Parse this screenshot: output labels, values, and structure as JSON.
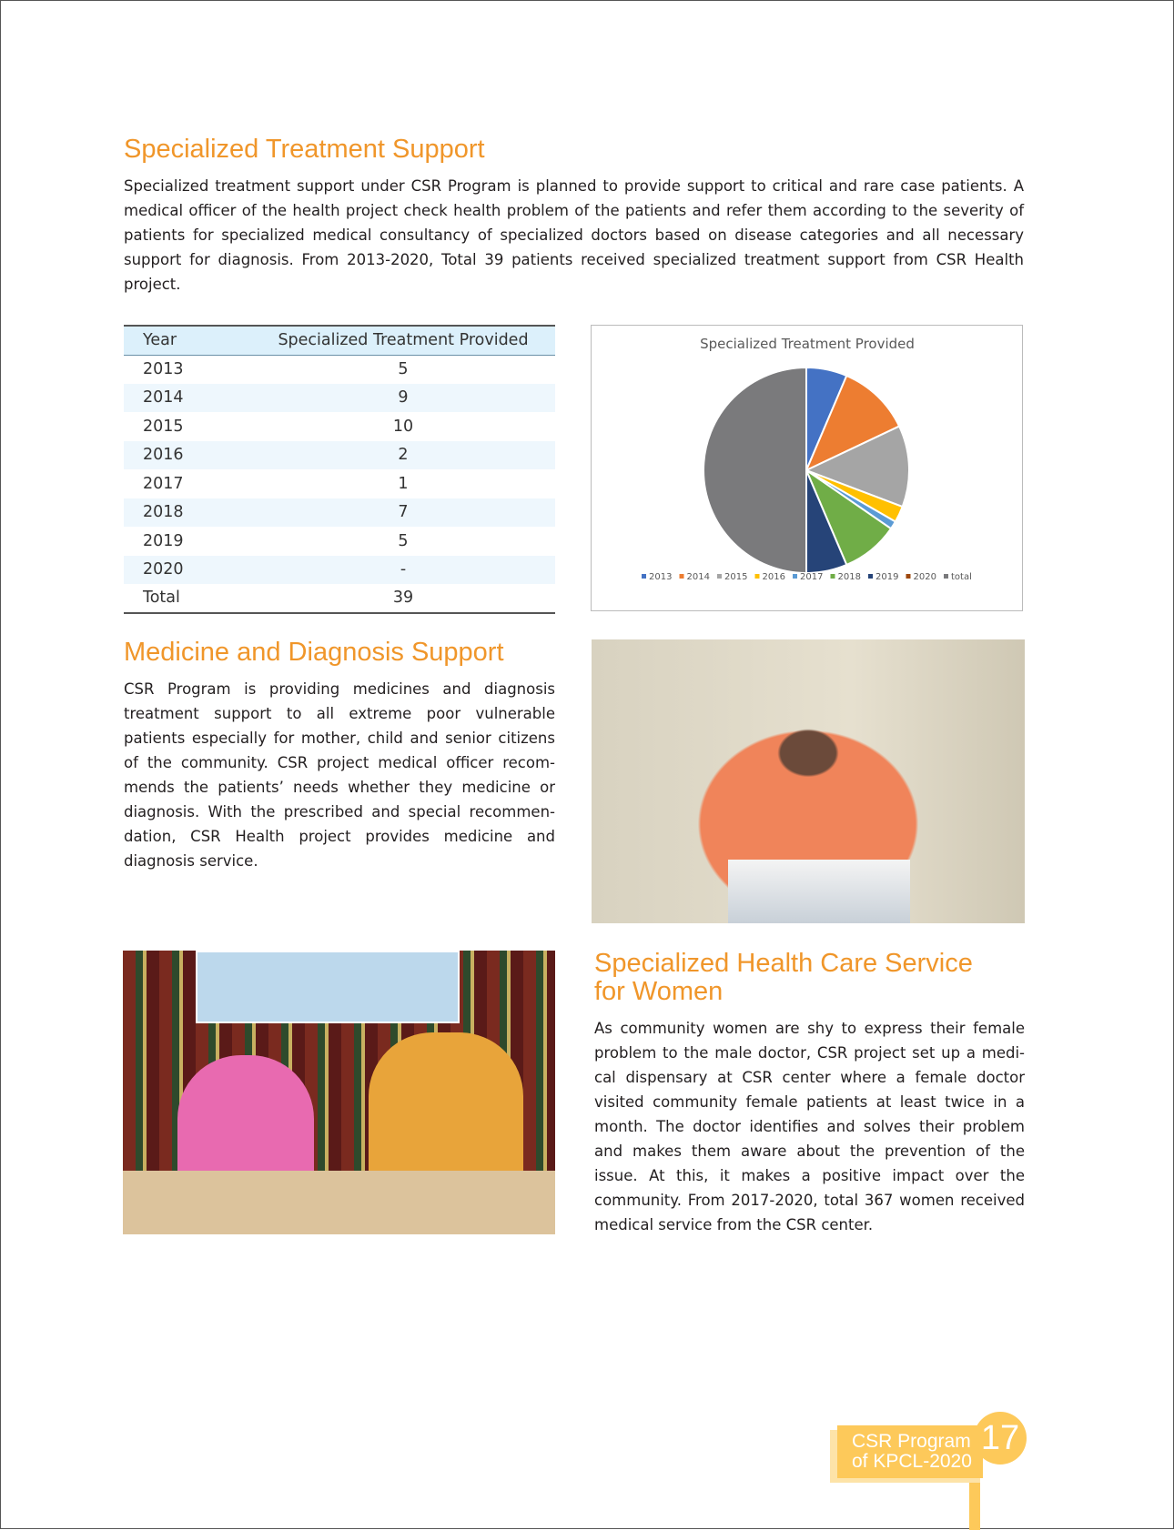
{
  "sections": {
    "specialized": {
      "title": "Specialized Treatment Support",
      "body": "Specialized treatment support under CSR Program is planned to provide support to critical and rare case patients. A medical officer of the health project check health problem of the patients and refer them according to the severity of patients for specialized medical consultancy of specialized doctors based on disease categories and all necessary support for diagnosis. From 2013-2020, Total 39 patients received specialized treatment support from CSR Health project."
    },
    "medicine": {
      "title": "Medicine and Diagnosis Support",
      "body": "CSR Program is providing medicines and diagnosis treatment support to all extreme poor vulnerable patients especially for mother, child and senior citizens of the community. CSR project medical officer recom-mends the patients’ needs whether they medicine or diagnosis. With the prescribed and special recommen-dation, CSR Health project provides medicine and diagnosis service."
    },
    "women": {
      "title_line1": "Specialized Health Care Service",
      "title_line2": "for Women",
      "body": "As community women are shy to express their female problem to the male doctor, CSR project set up a medi-cal dispensary at CSR center where a female doctor visited community female patients at least twice in a month. The doctor identifies and solves their problem and makes them aware about the prevention of the issue. At this, it makes a positive impact over the community. From 2017-2020, total 367 women received medical service from the CSR center."
    }
  },
  "table": {
    "headers": [
      "Year",
      "Specialized Treatment Provided"
    ],
    "rows": [
      [
        "2013",
        "5"
      ],
      [
        "2014",
        "9"
      ],
      [
        "2015",
        "10"
      ],
      [
        "2016",
        "2"
      ],
      [
        "2017",
        "1"
      ],
      [
        "2018",
        "7"
      ],
      [
        "2019",
        "5"
      ],
      [
        "2020",
        "-"
      ],
      [
        "Total",
        "39"
      ]
    ]
  },
  "chart_data": {
    "type": "pie",
    "title": "Specialized Treatment Provided",
    "categories": [
      "2013",
      "2014",
      "2015",
      "2016",
      "2017",
      "2018",
      "2019",
      "2020",
      "total"
    ],
    "values": [
      5,
      9,
      10,
      2,
      1,
      7,
      5,
      0,
      39
    ],
    "colors": [
      "#4472c4",
      "#ed7d31",
      "#a5a5a5",
      "#ffc000",
      "#5b9bd5",
      "#70ad47",
      "#264478",
      "#9e480e",
      "#7a7a7c"
    ],
    "legend": "bottom"
  },
  "footer": {
    "line1": "CSR Program",
    "line2": "of KPCL-2020",
    "page": "17",
    "color": "#fdc95a"
  },
  "accent": "#f0962a"
}
